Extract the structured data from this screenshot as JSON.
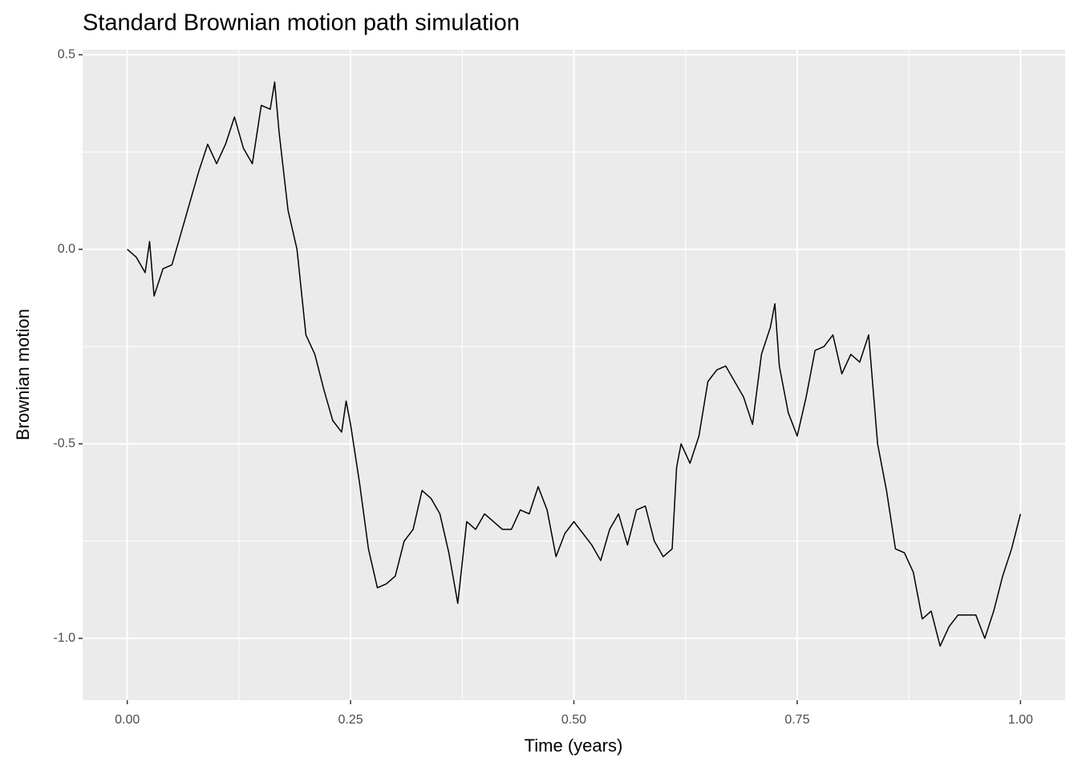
{
  "chart_data": {
    "type": "line",
    "title": "Standard Brownian motion path simulation",
    "xlabel": "Time (years)",
    "ylabel": "Brownian motion",
    "x": [
      0,
      0.01,
      0.02,
      0.025,
      0.03,
      0.04,
      0.05,
      0.06,
      0.07,
      0.075,
      0.08,
      0.09,
      0.1,
      0.11,
      0.12,
      0.13,
      0.14,
      0.15,
      0.16,
      0.165,
      0.17,
      0.18,
      0.19,
      0.2,
      0.21,
      0.22,
      0.23,
      0.24,
      0.245,
      0.25,
      0.26,
      0.27,
      0.28,
      0.29,
      0.3,
      0.31,
      0.32,
      0.33,
      0.34,
      0.35,
      0.36,
      0.37,
      0.38,
      0.39,
      0.4,
      0.41,
      0.42,
      0.43,
      0.44,
      0.45,
      0.46,
      0.47,
      0.48,
      0.49,
      0.5,
      0.51,
      0.52,
      0.53,
      0.54,
      0.55,
      0.56,
      0.57,
      0.58,
      0.59,
      0.6,
      0.61,
      0.615,
      0.62,
      0.63,
      0.64,
      0.65,
      0.66,
      0.67,
      0.68,
      0.69,
      0.7,
      0.71,
      0.72,
      0.725,
      0.73,
      0.74,
      0.75,
      0.76,
      0.77,
      0.78,
      0.79,
      0.8,
      0.81,
      0.82,
      0.83,
      0.84,
      0.85,
      0.86,
      0.87,
      0.88,
      0.89,
      0.9,
      0.91,
      0.92,
      0.93,
      0.94,
      0.95,
      0.96,
      0.97,
      0.98,
      0.99,
      1.0
    ],
    "values": [
      0,
      -0.02,
      -0.06,
      0.02,
      -0.12,
      -0.05,
      -0.04,
      0.04,
      0.12,
      0.16,
      0.2,
      0.27,
      0.22,
      0.27,
      0.34,
      0.26,
      0.22,
      0.37,
      0.36,
      0.43,
      0.3,
      0.1,
      0,
      -0.22,
      -0.27,
      -0.36,
      -0.44,
      -0.47,
      -0.39,
      -0.45,
      -0.6,
      -0.77,
      -0.87,
      -0.86,
      -0.84,
      -0.75,
      -0.72,
      -0.62,
      -0.64,
      -0.68,
      -0.78,
      -0.91,
      -0.7,
      -0.72,
      -0.68,
      -0.7,
      -0.72,
      -0.72,
      -0.67,
      -0.68,
      -0.61,
      -0.67,
      -0.79,
      -0.73,
      -0.7,
      -0.73,
      -0.76,
      -0.8,
      -0.72,
      -0.68,
      -0.76,
      -0.67,
      -0.66,
      -0.75,
      -0.79,
      -0.77,
      -0.56,
      -0.5,
      -0.55,
      -0.48,
      -0.34,
      -0.31,
      -0.3,
      -0.34,
      -0.38,
      -0.45,
      -0.27,
      -0.2,
      -0.14,
      -0.3,
      -0.42,
      -0.48,
      -0.38,
      -0.26,
      -0.25,
      -0.22,
      -0.32,
      -0.27,
      -0.29,
      -0.22,
      -0.5,
      -0.62,
      -0.77,
      -0.78,
      -0.83,
      -0.95,
      -0.93,
      -1.02,
      -0.97,
      -0.94,
      -0.94,
      -0.94,
      -1.0,
      -0.93,
      -0.84,
      -0.77,
      -0.68
    ],
    "color": "#000000",
    "xlim": [
      -0.05,
      1.05
    ],
    "ylim": [
      -1.159,
      0.513
    ],
    "xticks": [
      {
        "value": 0,
        "label": "0.00"
      },
      {
        "value": 0.25,
        "label": "0.25"
      },
      {
        "value": 0.5,
        "label": "0.50"
      },
      {
        "value": 0.75,
        "label": "0.75"
      },
      {
        "value": 1,
        "label": "1.00"
      }
    ],
    "yticks": [
      {
        "value": -1,
        "label": "-1.0"
      },
      -0.5,
      {
        "value": 0,
        "label": "0.0"
      },
      0.5
    ],
    "grid": true,
    "minor_grid": true
  }
}
